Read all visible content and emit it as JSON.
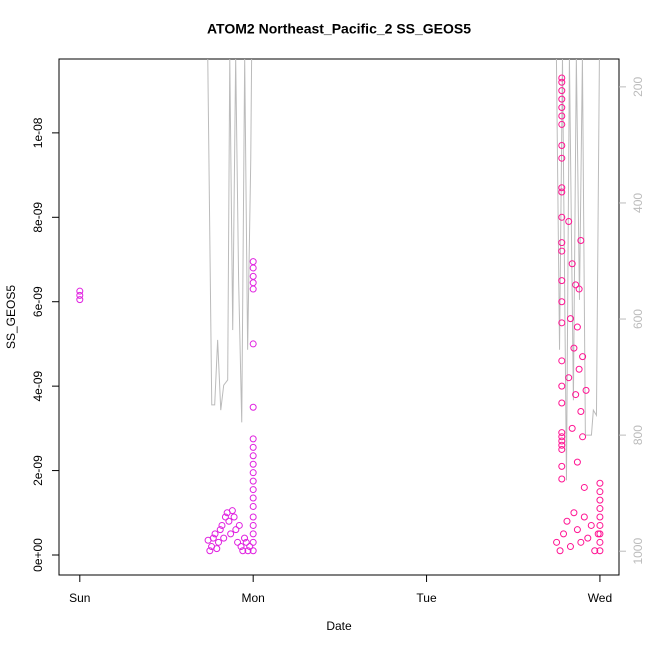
{
  "chart_data": {
    "type": "scatter",
    "title": "ATOM2 Northeast_Pacific_2 SS_GEOS5",
    "xlabel": "Date",
    "ylabel": "SS_GEOS5",
    "xlim": [
      -0.12,
      3.11
    ],
    "xticks": [
      {
        "value": 0,
        "label": "Sun"
      },
      {
        "value": 1,
        "label": "Mon"
      },
      {
        "value": 2,
        "label": "Tue"
      },
      {
        "value": 3,
        "label": "Wed"
      }
    ],
    "ylim": [
      -4.74e-10,
      1.175e-08
    ],
    "yticks": [
      {
        "value": 0,
        "label": "0e+00"
      },
      {
        "value": 2e-09,
        "label": "2e-09"
      },
      {
        "value": 4e-09,
        "label": "4e-09"
      },
      {
        "value": 6e-09,
        "label": "6e-09"
      },
      {
        "value": 8e-09,
        "label": "8e-09"
      },
      {
        "value": 1e-08,
        "label": "1e-08"
      }
    ],
    "y2lim": [
      1041,
      152
    ],
    "y2ticks": [
      200,
      400,
      600,
      800,
      1000
    ],
    "series": [
      {
        "type": "scatter",
        "color": "#e020e0",
        "x": [
          0,
          0,
          0,
          0.74,
          0.75,
          0.76,
          0.77,
          0.78,
          0.79,
          0.8,
          0.81,
          0.82,
          0.83,
          0.84,
          0.85,
          0.86,
          0.87,
          0.88,
          0.89,
          0.9,
          0.91,
          0.92,
          0.93,
          0.94,
          0.95,
          0.96,
          0.97,
          0.98,
          1,
          1,
          1,
          1,
          1,
          1,
          1,
          1,
          1,
          1,
          1,
          1,
          1,
          1,
          1,
          1,
          1,
          1,
          1,
          1,
          1
        ],
        "values": [
          6.05e-09,
          6.15e-09,
          6.25e-09,
          3.5e-10,
          1e-10,
          2e-10,
          4e-10,
          5e-10,
          1.5e-10,
          3e-10,
          6e-10,
          7e-10,
          4e-10,
          9e-10,
          1e-09,
          8e-10,
          5e-10,
          1.05e-09,
          9e-10,
          6e-10,
          3e-10,
          7e-10,
          2e-10,
          1e-10,
          4e-10,
          3e-10,
          1e-10,
          2e-10,
          6.95e-09,
          6.8e-09,
          6.6e-09,
          6.45e-09,
          6.3e-09,
          5e-09,
          3.5e-09,
          2.75e-09,
          2.55e-09,
          2.35e-09,
          2.15e-09,
          1.95e-09,
          1.75e-09,
          1.55e-09,
          1.35e-09,
          1.15e-09,
          9e-10,
          7e-10,
          5e-10,
          3e-10,
          1e-10
        ]
      },
      {
        "type": "scatter",
        "color": "#ff1493",
        "x": [
          2.78,
          2.78,
          2.78,
          2.78,
          2.78,
          2.78,
          2.78,
          2.78,
          2.78,
          2.78,
          2.78,
          2.78,
          2.78,
          2.78,
          2.78,
          2.78,
          2.78,
          2.78,
          2.78,
          2.78,
          2.78,
          2.78,
          2.78,
          2.78,
          2.78,
          2.78,
          2.78,
          2.82,
          2.84,
          2.86,
          2.83,
          2.87,
          2.85,
          2.88,
          2.82,
          2.86,
          2.89,
          2.84,
          2.9,
          2.87,
          2.91,
          2.89,
          2.88,
          2.9,
          2.92,
          2.75,
          2.77,
          2.79,
          2.81,
          2.83,
          2.85,
          2.87,
          2.89,
          2.91,
          2.93,
          2.95,
          2.97,
          2.99,
          3,
          3,
          3,
          3,
          3,
          3,
          3,
          3,
          3
        ],
        "values": [
          1.13e-08,
          1.12e-08,
          1.1e-08,
          1.08e-08,
          1.06e-08,
          1.04e-08,
          1.02e-08,
          9.7e-09,
          9.4e-09,
          8.7e-09,
          8.6e-09,
          8e-09,
          7.4e-09,
          7.2e-09,
          6.5e-09,
          6e-09,
          5.5e-09,
          4.6e-09,
          4e-09,
          3.6e-09,
          2.9e-09,
          2.8e-09,
          2.7e-09,
          2.6e-09,
          2.5e-09,
          2.1e-09,
          1.8e-09,
          7.9e-09,
          6.9e-09,
          6.4e-09,
          5.6e-09,
          5.4e-09,
          4.9e-09,
          4.4e-09,
          4.2e-09,
          3.8e-09,
          3.4e-09,
          3e-09,
          2.8e-09,
          2.2e-09,
          1.6e-09,
          7.45e-09,
          6.3e-09,
          4.7e-09,
          3.9e-09,
          3e-10,
          1e-10,
          5e-10,
          8e-10,
          2e-10,
          1e-09,
          6e-10,
          3e-10,
          9e-10,
          4e-10,
          7e-10,
          1e-10,
          5e-10,
          1.7e-09,
          1.5e-09,
          1.3e-09,
          1.1e-09,
          9e-10,
          7e-10,
          5e-10,
          3e-10,
          1e-10
        ]
      },
      {
        "type": "line",
        "axis": "y2",
        "color": "#bbbbbb",
        "x": [
          0.738,
          0.761,
          0.778,
          0.795,
          0.813,
          0.83,
          0.853,
          0.865,
          0.882,
          0.899,
          0.916,
          0.934,
          0.951,
          0.968,
          0.986,
          0.991,
          null,
          2.749,
          2.767,
          2.784,
          2.807,
          2.824,
          2.847,
          2.864,
          2.882,
          2.899,
          2.916,
          2.951,
          2.962,
          2.98,
          2.997
        ],
        "values": [
          150,
          748,
          748,
          636,
          757,
          714,
          705,
          150,
          619,
          150,
          533,
          778,
          150,
          653,
          326,
          150,
          null,
          150,
          653,
          150,
          878,
          150,
          740,
          150,
          567,
          150,
          800,
          800,
          757,
          766,
          150
        ]
      }
    ]
  }
}
